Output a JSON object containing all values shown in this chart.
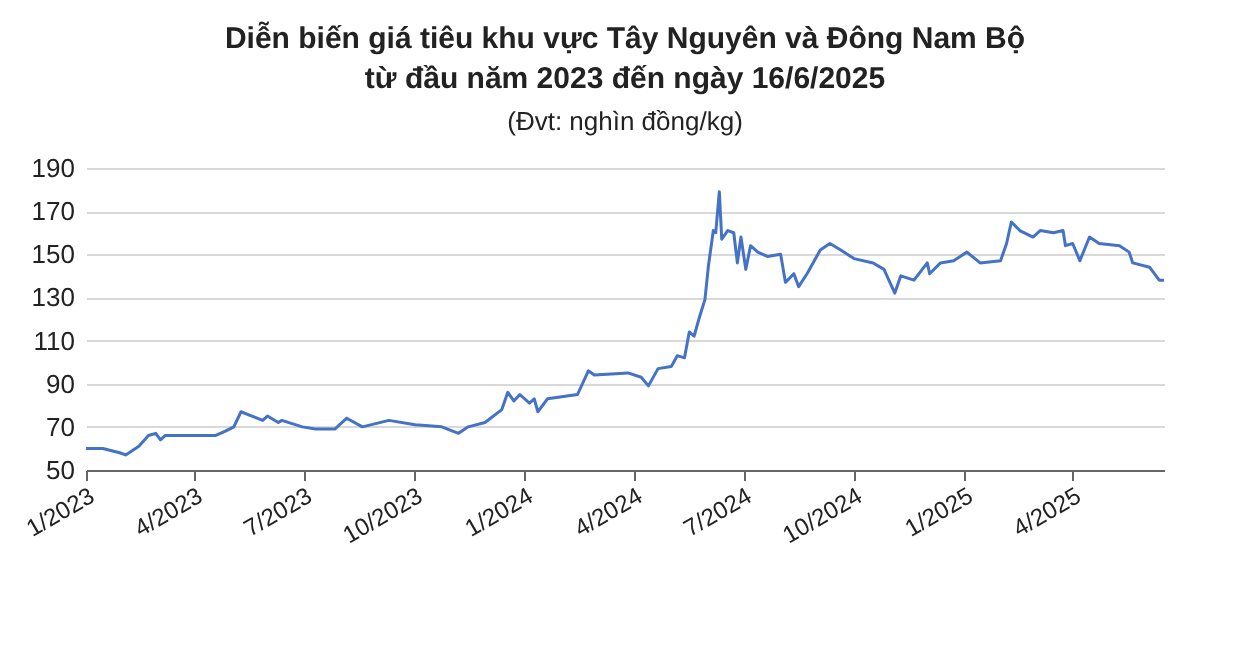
{
  "chart_data": {
    "type": "line",
    "title": "Diễn biến giá tiêu khu vực Tây Nguyên và Đông Nam Bộ\ntừ đầu năm 2023 đến ngày 16/6/2025",
    "subtitle": "(Đvt: nghìn đồng/kg)",
    "x": [
      "2023-01-01",
      "2023-01-15",
      "2023-01-29",
      "2023-02-03",
      "2023-02-14",
      "2023-02-22",
      "2023-02-28",
      "2023-03-04",
      "2023-03-08",
      "2023-03-28",
      "2023-04-19",
      "2023-04-27",
      "2023-05-04",
      "2023-05-10",
      "2023-05-19",
      "2023-05-28",
      "2023-06-01",
      "2023-06-10",
      "2023-06-13",
      "2023-06-30",
      "2023-07-11",
      "2023-07-27",
      "2023-08-06",
      "2023-08-19",
      "2023-09-10",
      "2023-10-02",
      "2023-10-24",
      "2023-11-07",
      "2023-11-15",
      "2023-11-29",
      "2023-12-13",
      "2023-12-18",
      "2023-12-23",
      "2023-12-28",
      "2024-01-05",
      "2024-01-09",
      "2024-01-12",
      "2024-01-20",
      "2024-02-14",
      "2024-02-23",
      "2024-02-28",
      "2024-03-27",
      "2024-04-07",
      "2024-04-13",
      "2024-04-21",
      "2024-05-02",
      "2024-05-07",
      "2024-05-13",
      "2024-05-17",
      "2024-05-21",
      "2024-05-25",
      "2024-05-30",
      "2024-06-02",
      "2024-06-06",
      "2024-06-08",
      "2024-06-11",
      "2024-06-13",
      "2024-06-18",
      "2024-06-23",
      "2024-06-26",
      "2024-06-29",
      "2024-07-03",
      "2024-07-07",
      "2024-07-13",
      "2024-07-21",
      "2024-08-01",
      "2024-08-05",
      "2024-08-12",
      "2024-08-16",
      "2024-08-23",
      "2024-09-03",
      "2024-09-11",
      "2024-09-20",
      "2024-10-01",
      "2024-10-17",
      "2024-10-26",
      "2024-11-04",
      "2024-11-09",
      "2024-11-20",
      "2024-12-01",
      "2024-12-03",
      "2024-12-12",
      "2024-12-23",
      "2025-01-03",
      "2025-01-14",
      "2025-01-31",
      "2025-02-05",
      "2025-02-09",
      "2025-02-16",
      "2025-02-27",
      "2025-03-05",
      "2025-03-16",
      "2025-03-24",
      "2025-03-26",
      "2025-04-01",
      "2025-04-07",
      "2025-04-15",
      "2025-04-23",
      "2025-05-10",
      "2025-05-18",
      "2025-05-21",
      "2025-06-04",
      "2025-06-12",
      "2025-06-16"
    ],
    "series": [
      {
        "color": "#4472c4",
        "values": [
          60,
          60,
          58,
          57,
          61,
          66,
          67,
          64,
          66,
          66,
          66,
          68,
          70,
          77,
          75,
          73,
          75,
          72,
          73,
          70,
          69,
          69,
          74,
          70,
          73,
          71,
          70,
          67,
          70,
          72,
          78,
          86,
          82,
          85,
          81,
          83,
          77,
          83,
          85,
          96,
          94,
          95,
          93,
          89,
          97,
          98,
          103,
          102,
          114,
          112,
          120,
          129,
          145,
          161,
          160,
          179,
          157,
          161,
          160,
          146,
          158,
          143,
          154,
          151,
          149,
          150,
          137,
          141,
          135,
          141,
          152,
          155,
          152,
          148,
          146,
          143,
          132,
          140,
          138,
          146,
          141,
          146,
          147,
          151,
          146,
          147,
          155,
          165,
          161,
          158,
          161,
          160,
          161,
          154,
          155,
          147,
          158,
          155,
          154,
          151,
          146,
          144,
          138,
          138
        ]
      }
    ],
    "xlim": [
      "2023-01-01",
      "2025-06-16"
    ],
    "xticks": [
      {
        "value": "2023-01-01",
        "label": "1/2023"
      },
      {
        "value": "2023-04-01",
        "label": "4/2023"
      },
      {
        "value": "2023-07-01",
        "label": "7/2023"
      },
      {
        "value": "2023-10-01",
        "label": "10/2023"
      },
      {
        "value": "2024-01-01",
        "label": "1/2024"
      },
      {
        "value": "2024-04-01",
        "label": "4/2024"
      },
      {
        "value": "2024-07-01",
        "label": "7/2024"
      },
      {
        "value": "2024-10-01",
        "label": "10/2024"
      },
      {
        "value": "2025-01-01",
        "label": "1/2025"
      },
      {
        "value": "2025-04-01",
        "label": "4/2025"
      }
    ],
    "ylim": [
      50,
      190
    ],
    "yticks": [
      50,
      70,
      90,
      110,
      130,
      150,
      170,
      190
    ],
    "grid": "y",
    "marker": "none",
    "line_style": "solid"
  }
}
